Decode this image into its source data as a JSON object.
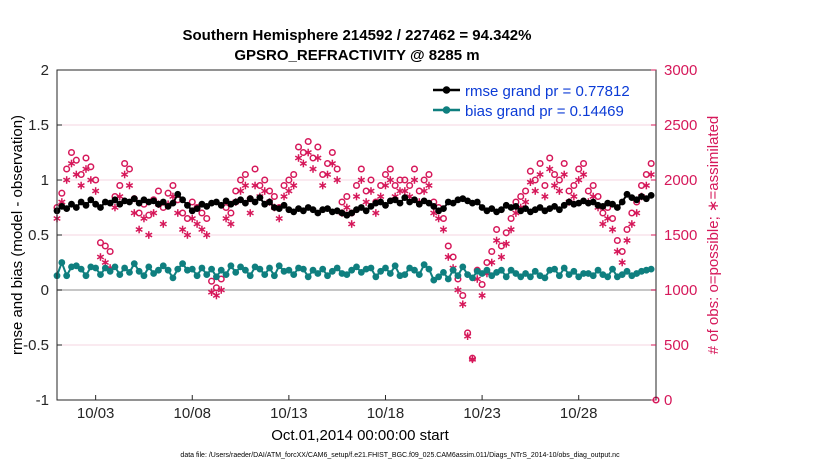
{
  "chart_data": {
    "type": "line",
    "title_line1": "Southern Hemisphere 214592 / 227462 = 94.342%",
    "title_line2": "GPSRO_REFRACTIVITY @ 8285 m",
    "xlabel": "Oct.01,2014 00:00:00 start",
    "ylabel_left": "rmse and bias (model - observation)",
    "ylabel_right": "# of obs: o=possible; ∗=assimilated",
    "footnote": "data file: /Users/raeder/DAI/ATM_forcXX/CAM6_setup/f.e21.FHIST_BGC.f09_025.CAM6assim.011/Diags_NTrS_2014-10/obs_diag_output.nc",
    "xlim": [
      1.0,
      32.0
    ],
    "ylim_left": [
      -1,
      2
    ],
    "ylim_right": [
      0,
      3000
    ],
    "x_ticks": [
      {
        "value": 3,
        "label": "10/03"
      },
      {
        "value": 8,
        "label": "10/08"
      },
      {
        "value": 13,
        "label": "10/13"
      },
      {
        "value": 18,
        "label": "10/18"
      },
      {
        "value": 23,
        "label": "10/23"
      },
      {
        "value": 28,
        "label": "10/28"
      }
    ],
    "y_ticks_left": [
      {
        "value": -1,
        "label": "-1"
      },
      {
        "value": -0.5,
        "label": "-0.5"
      },
      {
        "value": 0,
        "label": "0"
      },
      {
        "value": 0.5,
        "label": "0.5"
      },
      {
        "value": 1,
        "label": "1"
      },
      {
        "value": 1.5,
        "label": "1.5"
      },
      {
        "value": 2,
        "label": "2"
      }
    ],
    "y_ticks_right": [
      {
        "value": 0,
        "label": "0"
      },
      {
        "value": 500,
        "label": "500"
      },
      {
        "value": 1000,
        "label": "1000"
      },
      {
        "value": 1500,
        "label": "1500"
      },
      {
        "value": 2000,
        "label": "2000"
      },
      {
        "value": 2500,
        "label": "2500"
      },
      {
        "value": 3000,
        "label": "3000"
      }
    ],
    "legend": [
      {
        "label": "rmse grand pr = 0.77812",
        "color": "#000000"
      },
      {
        "label": "bias grand pr = 0.14469",
        "color": "#0f7f7f"
      }
    ],
    "legend_position": "top-right",
    "colors": {
      "rmse": "#000000",
      "bias": "#0f7f7f",
      "obs": "#d6185a",
      "zero_line": "#b4b4b4"
    },
    "series": [
      {
        "name": "rmse",
        "axis": "left",
        "x": [
          1.0,
          1.25,
          1.5,
          1.75,
          2.0,
          2.25,
          2.5,
          2.75,
          3.0,
          3.25,
          3.5,
          3.75,
          4.0,
          4.25,
          4.5,
          4.75,
          5.0,
          5.25,
          5.5,
          5.75,
          6.0,
          6.25,
          6.5,
          6.75,
          7.0,
          7.25,
          7.5,
          7.75,
          8.0,
          8.25,
          8.5,
          8.75,
          9.0,
          9.25,
          9.5,
          9.75,
          10.0,
          10.25,
          10.5,
          10.75,
          11.0,
          11.25,
          11.5,
          11.75,
          12.0,
          12.25,
          12.5,
          12.75,
          13.0,
          13.25,
          13.5,
          13.75,
          14.0,
          14.25,
          14.5,
          14.75,
          15.0,
          15.25,
          15.5,
          15.75,
          16.0,
          16.25,
          16.5,
          16.75,
          17.0,
          17.25,
          17.5,
          17.75,
          18.0,
          18.25,
          18.5,
          18.75,
          19.0,
          19.25,
          19.5,
          19.75,
          20.0,
          20.25,
          20.5,
          20.75,
          21.0,
          21.25,
          21.5,
          21.75,
          22.0,
          22.25,
          22.5,
          22.75,
          23.0,
          23.25,
          23.5,
          23.75,
          24.0,
          24.25,
          24.5,
          24.75,
          25.0,
          25.25,
          25.5,
          25.75,
          26.0,
          26.25,
          26.5,
          26.75,
          27.0,
          27.25,
          27.5,
          27.75,
          28.0,
          28.25,
          28.5,
          28.75,
          29.0,
          29.25,
          29.5,
          29.75,
          30.0,
          30.25,
          30.5,
          30.75,
          31.0,
          31.25,
          31.5,
          31.75
        ],
        "values": [
          0.72,
          0.76,
          0.74,
          0.78,
          0.75,
          0.8,
          0.77,
          0.82,
          0.78,
          0.75,
          0.8,
          0.79,
          0.82,
          0.78,
          0.81,
          0.8,
          0.83,
          0.79,
          0.82,
          0.8,
          0.81,
          0.78,
          0.8,
          0.76,
          0.79,
          0.87,
          0.82,
          0.77,
          0.72,
          0.74,
          0.78,
          0.76,
          0.79,
          0.8,
          0.77,
          0.81,
          0.78,
          0.8,
          0.82,
          0.79,
          0.83,
          0.8,
          0.84,
          0.78,
          0.8,
          0.75,
          0.74,
          0.77,
          0.73,
          0.71,
          0.74,
          0.72,
          0.75,
          0.73,
          0.7,
          0.73,
          0.74,
          0.71,
          0.72,
          0.7,
          0.68,
          0.7,
          0.73,
          0.75,
          0.72,
          0.76,
          0.79,
          0.8,
          0.77,
          0.81,
          0.82,
          0.79,
          0.84,
          0.8,
          0.82,
          0.78,
          0.81,
          0.79,
          0.76,
          0.72,
          0.74,
          0.8,
          0.79,
          0.82,
          0.83,
          0.81,
          0.79,
          0.8,
          0.75,
          0.72,
          0.74,
          0.71,
          0.73,
          0.77,
          0.75,
          0.76,
          0.72,
          0.74,
          0.71,
          0.73,
          0.75,
          0.72,
          0.74,
          0.76,
          0.73,
          0.77,
          0.8,
          0.78,
          0.79,
          0.81,
          0.79,
          0.8,
          0.77,
          0.76,
          0.79,
          0.78,
          0.75,
          0.8,
          0.87,
          0.84,
          0.82,
          0.85,
          0.83,
          0.86
        ]
      },
      {
        "name": "bias",
        "axis": "left",
        "x": [
          1.0,
          1.25,
          1.5,
          1.75,
          2.0,
          2.25,
          2.5,
          2.75,
          3.0,
          3.25,
          3.5,
          3.75,
          4.0,
          4.25,
          4.5,
          4.75,
          5.0,
          5.25,
          5.5,
          5.75,
          6.0,
          6.25,
          6.5,
          6.75,
          7.0,
          7.25,
          7.5,
          7.75,
          8.0,
          8.25,
          8.5,
          8.75,
          9.0,
          9.25,
          9.5,
          9.75,
          10.0,
          10.25,
          10.5,
          10.75,
          11.0,
          11.25,
          11.5,
          11.75,
          12.0,
          12.25,
          12.5,
          12.75,
          13.0,
          13.25,
          13.5,
          13.75,
          14.0,
          14.25,
          14.5,
          14.75,
          15.0,
          15.25,
          15.5,
          15.75,
          16.0,
          16.25,
          16.5,
          16.75,
          17.0,
          17.25,
          17.5,
          17.75,
          18.0,
          18.25,
          18.5,
          18.75,
          19.0,
          19.25,
          19.5,
          19.75,
          20.0,
          20.25,
          20.5,
          20.75,
          21.0,
          21.25,
          21.5,
          21.75,
          22.0,
          22.25,
          22.5,
          22.75,
          23.0,
          23.25,
          23.5,
          23.75,
          24.0,
          24.25,
          24.5,
          24.75,
          25.0,
          25.25,
          25.5,
          25.75,
          26.0,
          26.25,
          26.5,
          26.75,
          27.0,
          27.25,
          27.5,
          27.75,
          28.0,
          28.25,
          28.5,
          28.75,
          29.0,
          29.25,
          29.5,
          29.75,
          30.0,
          30.25,
          30.5,
          30.75,
          31.0,
          31.25,
          31.5,
          31.75
        ],
        "values": [
          0.13,
          0.25,
          0.13,
          0.21,
          0.22,
          0.19,
          0.13,
          0.21,
          0.2,
          0.14,
          0.2,
          0.17,
          0.21,
          0.14,
          0.2,
          0.16,
          0.24,
          0.17,
          0.13,
          0.21,
          0.15,
          0.18,
          0.22,
          0.18,
          0.11,
          0.19,
          0.24,
          0.18,
          0.19,
          0.13,
          0.2,
          0.14,
          0.19,
          0.12,
          0.18,
          0.14,
          0.22,
          0.16,
          0.21,
          0.18,
          0.13,
          0.21,
          0.19,
          0.14,
          0.2,
          0.13,
          0.22,
          0.17,
          0.18,
          0.14,
          0.2,
          0.19,
          0.12,
          0.18,
          0.15,
          0.19,
          0.13,
          0.17,
          0.2,
          0.15,
          0.14,
          0.18,
          0.21,
          0.16,
          0.19,
          0.2,
          0.12,
          0.17,
          0.2,
          0.15,
          0.22,
          0.13,
          0.14,
          0.2,
          0.18,
          0.14,
          0.23,
          0.19,
          0.09,
          0.12,
          0.16,
          0.1,
          0.18,
          0.13,
          0.21,
          0.14,
          0.11,
          0.17,
          0.15,
          0.18,
          0.13,
          0.16,
          0.18,
          0.12,
          0.18,
          0.15,
          0.12,
          0.15,
          0.12,
          0.17,
          0.13,
          0.11,
          0.18,
          0.19,
          0.13,
          0.2,
          0.14,
          0.17,
          0.12,
          0.15,
          0.15,
          0.13,
          0.18,
          0.14,
          0.12,
          0.19,
          0.12,
          0.14,
          0.17,
          0.13,
          0.15,
          0.17,
          0.18,
          0.19
        ]
      },
      {
        "name": "possible",
        "axis": "right",
        "marker": "o",
        "x": [
          1.0,
          1.25,
          1.5,
          1.75,
          2.0,
          2.25,
          2.5,
          2.75,
          3.0,
          3.25,
          3.5,
          3.75,
          4.0,
          4.25,
          4.5,
          4.75,
          5.0,
          5.25,
          5.5,
          5.75,
          6.0,
          6.25,
          6.5,
          6.75,
          7.0,
          7.25,
          7.5,
          7.75,
          8.0,
          8.25,
          8.5,
          8.75,
          9.0,
          9.25,
          9.5,
          9.75,
          10.0,
          10.25,
          10.5,
          10.75,
          11.0,
          11.25,
          11.5,
          11.75,
          12.0,
          12.25,
          12.5,
          12.75,
          13.0,
          13.25,
          13.5,
          13.75,
          14.0,
          14.25,
          14.5,
          14.75,
          15.0,
          15.25,
          15.5,
          15.75,
          16.0,
          16.25,
          16.5,
          16.75,
          17.0,
          17.25,
          17.5,
          17.75,
          18.0,
          18.25,
          18.5,
          18.75,
          19.0,
          19.25,
          19.5,
          19.75,
          20.0,
          20.25,
          20.5,
          20.75,
          21.0,
          21.25,
          21.5,
          21.75,
          22.0,
          22.25,
          22.5,
          22.75,
          23.0,
          23.25,
          23.5,
          23.75,
          24.0,
          24.25,
          24.5,
          24.75,
          25.0,
          25.25,
          25.5,
          25.75,
          26.0,
          26.25,
          26.5,
          26.75,
          27.0,
          27.25,
          27.5,
          27.75,
          28.0,
          28.25,
          28.5,
          28.75,
          29.0,
          29.25,
          29.5,
          29.75,
          30.0,
          30.25,
          30.5,
          30.75,
          31.0,
          31.25,
          31.5,
          31.75,
          32.0
        ],
        "values": [
          1750,
          1880,
          2100,
          2250,
          2180,
          2050,
          2200,
          2120,
          2000,
          1430,
          1400,
          1350,
          1850,
          1950,
          2150,
          2100,
          1830,
          1700,
          1780,
          1680,
          1820,
          1900,
          1750,
          1880,
          1950,
          1820,
          1700,
          1650,
          1800,
          1750,
          1700,
          1650,
          1080,
          1020,
          1100,
          1750,
          1700,
          1900,
          2000,
          2050,
          1830,
          2100,
          1950,
          2000,
          1900,
          1850,
          1750,
          1950,
          2000,
          2050,
          2300,
          2250,
          2350,
          2200,
          2300,
          2050,
          2150,
          2250,
          2100,
          1800,
          1850,
          1700,
          1950,
          2100,
          1900,
          2000,
          1800,
          1950,
          2050,
          2100,
          1950,
          2000,
          2000,
          1950,
          2100,
          1900,
          2000,
          2050,
          1800,
          1750,
          1650,
          1400,
          1300,
          1100,
          950,
          610,
          380,
          1180,
          1050,
          1250,
          1350,
          1550,
          1400,
          1520,
          1650,
          1800,
          1850,
          1900,
          2080,
          2000,
          2150,
          1950,
          2200,
          2050,
          2000,
          2150,
          1900,
          1950,
          2100,
          2150,
          1900,
          1950,
          1850,
          1700,
          1750,
          1650,
          1450,
          1350,
          1550,
          1700,
          1800,
          1950,
          2050,
          2150,
          0
        ]
      },
      {
        "name": "assimilated",
        "axis": "right",
        "marker": "*",
        "x": [
          1.0,
          1.25,
          1.5,
          1.75,
          2.0,
          2.25,
          2.5,
          2.75,
          3.0,
          3.25,
          3.5,
          3.75,
          4.0,
          4.25,
          4.5,
          4.75,
          5.0,
          5.25,
          5.5,
          5.75,
          6.0,
          6.25,
          6.5,
          6.75,
          7.0,
          7.25,
          7.5,
          7.75,
          8.0,
          8.25,
          8.5,
          8.75,
          9.0,
          9.25,
          9.5,
          9.75,
          10.0,
          10.25,
          10.5,
          10.75,
          11.0,
          11.25,
          11.5,
          11.75,
          12.0,
          12.25,
          12.5,
          12.75,
          13.0,
          13.25,
          13.5,
          13.75,
          14.0,
          14.25,
          14.5,
          14.75,
          15.0,
          15.25,
          15.5,
          15.75,
          16.0,
          16.25,
          16.5,
          16.75,
          17.0,
          17.25,
          17.5,
          17.75,
          18.0,
          18.25,
          18.5,
          18.75,
          19.0,
          19.25,
          19.5,
          19.75,
          20.0,
          20.25,
          20.5,
          20.75,
          21.0,
          21.25,
          21.5,
          21.75,
          22.0,
          22.25,
          22.5,
          22.75,
          23.0,
          23.25,
          23.5,
          23.75,
          24.0,
          24.25,
          24.5,
          24.75,
          25.0,
          25.25,
          25.5,
          25.75,
          26.0,
          26.25,
          26.5,
          26.75,
          27.0,
          27.25,
          27.5,
          27.75,
          28.0,
          28.25,
          28.5,
          28.75,
          29.0,
          29.25,
          29.5,
          29.75,
          30.0,
          30.25,
          30.5,
          30.75,
          31.0,
          31.25,
          31.5,
          31.75
        ],
        "values": [
          1650,
          1800,
          2000,
          2150,
          2050,
          1950,
          2100,
          2000,
          1900,
          1300,
          1250,
          1200,
          1750,
          1850,
          2050,
          1950,
          1700,
          1550,
          1650,
          1500,
          1700,
          1780,
          1600,
          1780,
          1850,
          1700,
          1550,
          1500,
          1650,
          1600,
          1550,
          1500,
          980,
          950,
          1000,
          1650,
          1600,
          1800,
          1900,
          1950,
          1700,
          1950,
          1850,
          1900,
          1800,
          1750,
          1650,
          1850,
          1900,
          1950,
          2200,
          2150,
          2250,
          2100,
          2200,
          1950,
          2050,
          2150,
          2000,
          1700,
          1750,
          1600,
          1850,
          2000,
          1800,
          1900,
          1700,
          1850,
          1950,
          2000,
          1850,
          1900,
          1900,
          1850,
          2000,
          1800,
          1900,
          1950,
          1700,
          1650,
          1550,
          1300,
          1200,
          1000,
          870,
          580,
          370,
          1100,
          950,
          1150,
          1250,
          1450,
          1300,
          1420,
          1550,
          1700,
          1750,
          1800,
          1980,
          1900,
          2050,
          1850,
          2100,
          1950,
          1900,
          2050,
          1800,
          1850,
          2000,
          2050,
          1800,
          1850,
          1750,
          1600,
          1650,
          1550,
          1350,
          1250,
          1450,
          1600,
          1700,
          1850,
          1950,
          2050
        ]
      }
    ]
  }
}
